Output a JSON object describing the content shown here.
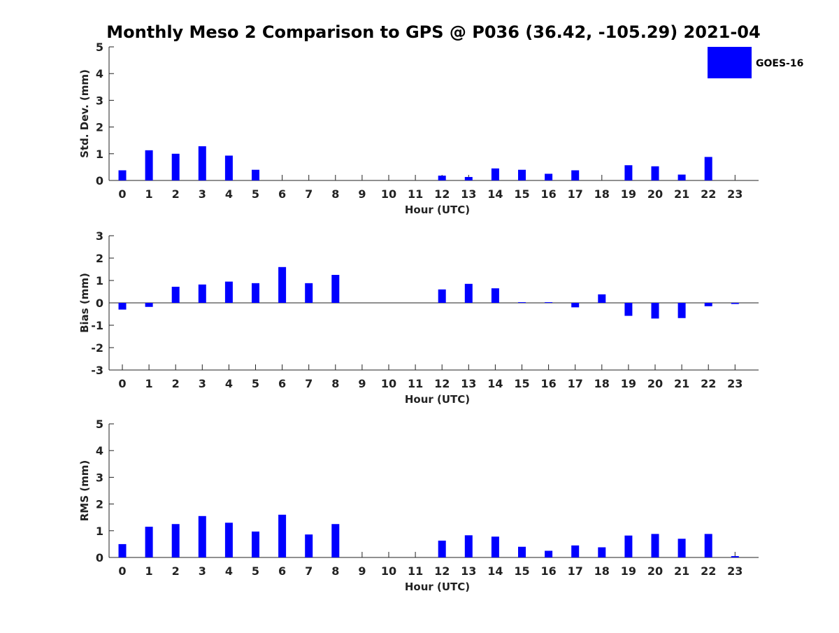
{
  "chart_data": {
    "type": "bar",
    "title": "Monthly Meso 2 Comparison to GPS @ P036 (36.42, -105.29) 2021-04",
    "categories": [
      "0",
      "1",
      "2",
      "3",
      "4",
      "5",
      "6",
      "7",
      "8",
      "9",
      "10",
      "11",
      "12",
      "13",
      "14",
      "15",
      "16",
      "17",
      "18",
      "19",
      "20",
      "21",
      "22",
      "23"
    ],
    "bar_color": "#0000ff",
    "legend": {
      "entries": [
        "GOES-16"
      ],
      "placement": "top-right"
    },
    "grid": false,
    "panels": [
      {
        "id": "std",
        "xlabel": "Hour (UTC)",
        "ylabel": "Std. Dev. (mm)",
        "ylim": [
          0,
          5
        ],
        "yticks": [
          0,
          1,
          2,
          3,
          4,
          5
        ],
        "series": [
          {
            "name": "GOES-16",
            "values": [
              0.38,
              1.13,
              1.0,
              1.28,
              0.93,
              0.4,
              0,
              0,
              0,
              0,
              0,
              0,
              0.18,
              0.13,
              0.45,
              0.4,
              0.25,
              0.38,
              0,
              0.57,
              0.53,
              0.22,
              0.88,
              0
            ]
          }
        ]
      },
      {
        "id": "bias",
        "xlabel": "Hour (UTC)",
        "ylabel": "Bias (mm)",
        "ylim": [
          -3,
          3
        ],
        "yticks": [
          -3,
          -2,
          -1,
          0,
          1,
          2,
          3
        ],
        "series": [
          {
            "name": "GOES-16",
            "values": [
              -0.3,
              -0.18,
              0.72,
              0.82,
              0.95,
              0.88,
              1.6,
              0.88,
              1.25,
              0,
              0,
              0,
              0.6,
              0.85,
              0.65,
              0.03,
              0.03,
              -0.2,
              0.38,
              -0.58,
              -0.7,
              -0.68,
              -0.15,
              -0.05
            ]
          }
        ]
      },
      {
        "id": "rms",
        "xlabel": "Hour (UTC)",
        "ylabel": "RMS (mm)",
        "ylim": [
          0,
          5
        ],
        "yticks": [
          0,
          1,
          2,
          3,
          4,
          5
        ],
        "series": [
          {
            "name": "GOES-16",
            "values": [
              0.5,
              1.15,
              1.25,
              1.55,
              1.3,
              0.97,
              1.6,
              0.86,
              1.25,
              0,
              0,
              0,
              0.63,
              0.83,
              0.78,
              0.4,
              0.25,
              0.45,
              0.38,
              0.82,
              0.88,
              0.7,
              0.88,
              0.05
            ]
          }
        ]
      }
    ]
  }
}
